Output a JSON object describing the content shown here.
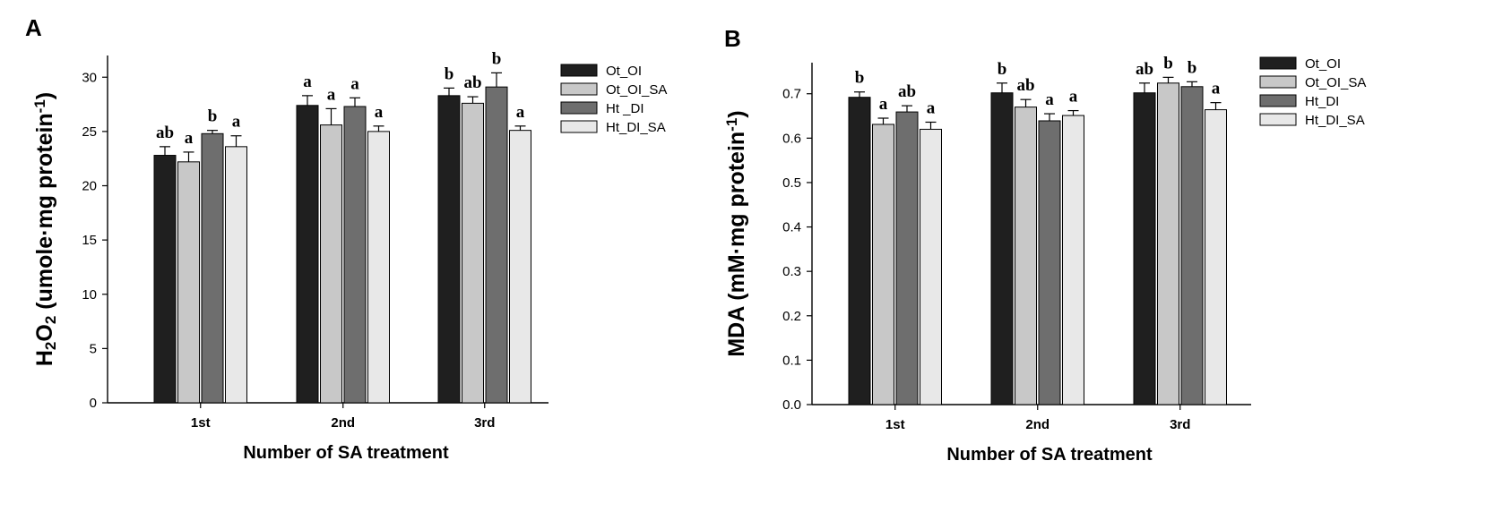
{
  "chart_data": [
    {
      "panel": "A",
      "type": "bar",
      "xlabel": "Number of SA treatment",
      "ylabel": {
        "parts": [
          {
            "text": "H",
            "style": "normal"
          },
          {
            "text": "2",
            "style": "sub"
          },
          {
            "text": "O",
            "style": "normal"
          },
          {
            "text": "2",
            "style": "sub"
          },
          {
            "text": " (umole·mg protein",
            "style": "normal"
          },
          {
            "text": "-1",
            "style": "sup"
          },
          {
            "text": ")",
            "style": "normal"
          }
        ]
      },
      "ylim": [
        0,
        32
      ],
      "yticks": [
        0,
        5,
        10,
        15,
        20,
        25,
        30
      ],
      "ytick_labels": [
        "0",
        "5",
        "10",
        "15",
        "20",
        "25",
        "30"
      ],
      "categories": [
        "1st",
        "2nd",
        "3rd"
      ],
      "series": [
        {
          "name": "Ot_OI",
          "color": "#1f1f1f",
          "values": [
            22.8,
            27.4,
            28.3
          ],
          "errors": [
            0.8,
            0.9,
            0.7
          ],
          "labels": [
            "ab",
            "a",
            "b"
          ]
        },
        {
          "name": "Ot_OI_SA",
          "color": "#c8c8c8",
          "values": [
            22.2,
            25.6,
            27.6
          ],
          "errors": [
            0.9,
            1.5,
            0.6
          ],
          "labels": [
            "a",
            "a",
            "ab"
          ]
        },
        {
          "name": "Ht _DI",
          "color": "#6e6e6e",
          "values": [
            24.8,
            27.3,
            29.1
          ],
          "errors": [
            0.3,
            0.8,
            1.3
          ],
          "labels": [
            "b",
            "a",
            "b"
          ]
        },
        {
          "name": "Ht_DI_SA",
          "color": "#e8e8e8",
          "values": [
            23.6,
            25.0,
            25.1
          ],
          "errors": [
            1.0,
            0.5,
            0.4
          ],
          "labels": [
            "a",
            "a",
            "a"
          ]
        }
      ]
    },
    {
      "panel": "B",
      "type": "bar",
      "xlabel": "Number of SA treatment",
      "ylabel": {
        "parts": [
          {
            "text": "MDA (mM·mg protein",
            "style": "normal"
          },
          {
            "text": "-1",
            "style": "sup"
          },
          {
            "text": ")",
            "style": "normal"
          }
        ]
      },
      "ylim": [
        0,
        0.77
      ],
      "yticks": [
        0,
        0.1,
        0.2,
        0.3,
        0.4,
        0.5,
        0.6,
        0.7
      ],
      "ytick_labels": [
        "0.0",
        "0.1",
        "0.2",
        "0.3",
        "0.4",
        "0.5",
        "0.6",
        "0.7"
      ],
      "categories": [
        "1st",
        "2nd",
        "3rd"
      ],
      "series": [
        {
          "name": "Ot_OI",
          "color": "#1f1f1f",
          "values": [
            0.692,
            0.702,
            0.702
          ],
          "errors": [
            0.012,
            0.022,
            0.022
          ],
          "labels": [
            "b",
            "b",
            "ab"
          ]
        },
        {
          "name": "Ot_OI_SA",
          "color": "#c8c8c8",
          "values": [
            0.631,
            0.67,
            0.724
          ],
          "errors": [
            0.014,
            0.017,
            0.013
          ],
          "labels": [
            "a",
            "ab",
            "b"
          ]
        },
        {
          "name": "Ht_DI",
          "color": "#6e6e6e",
          "values": [
            0.659,
            0.639,
            0.716
          ],
          "errors": [
            0.014,
            0.016,
            0.011
          ],
          "labels": [
            "ab",
            "a",
            "b"
          ]
        },
        {
          "name": "Ht_DI_SA",
          "color": "#e8e8e8",
          "values": [
            0.62,
            0.651,
            0.664
          ],
          "errors": [
            0.016,
            0.011,
            0.016
          ],
          "labels": [
            "a",
            "a",
            "a"
          ]
        }
      ]
    }
  ]
}
